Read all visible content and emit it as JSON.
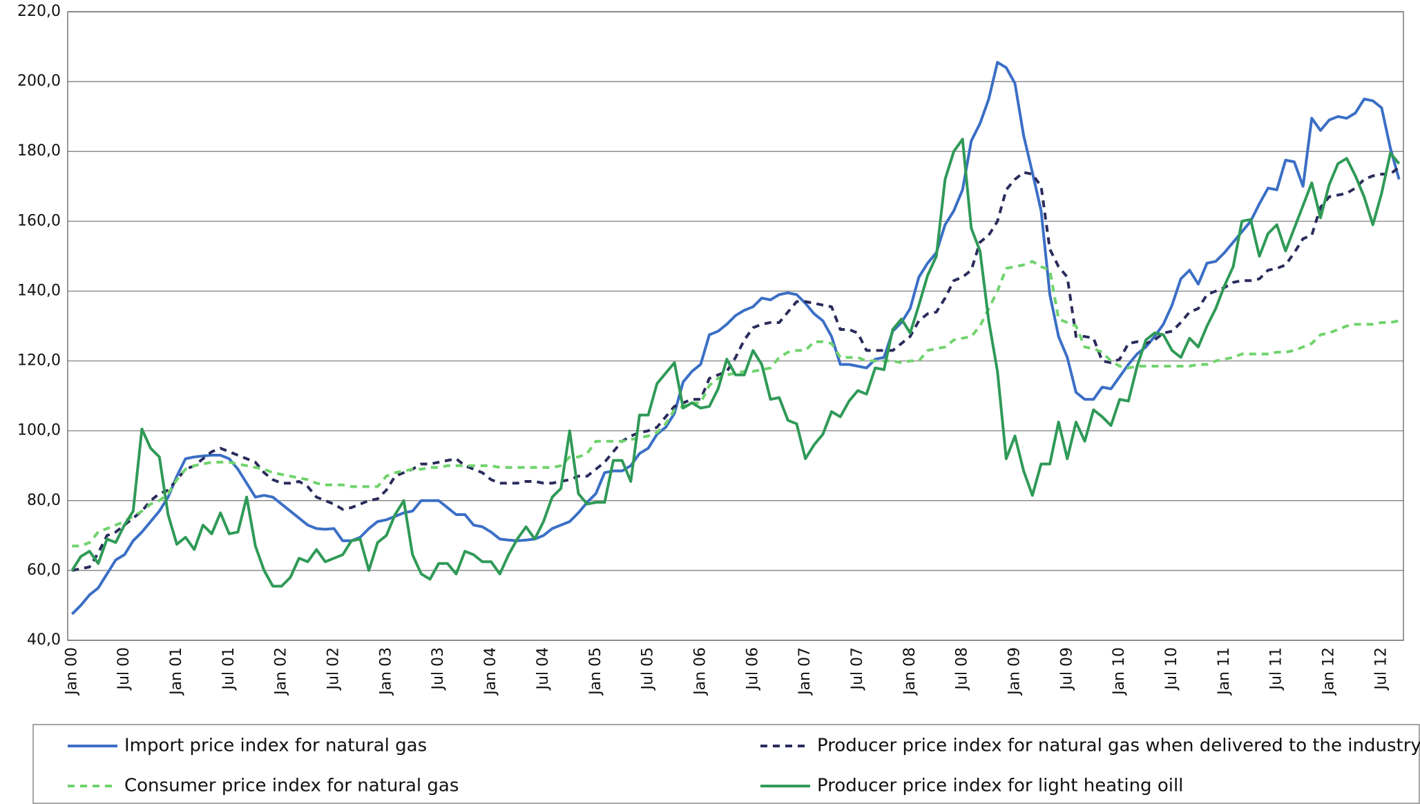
{
  "chart_data": {
    "type": "line",
    "categories": [
      "Jan 00",
      null,
      null,
      null,
      null,
      null,
      "Jul 00",
      null,
      null,
      null,
      null,
      null,
      "Jan 01",
      null,
      null,
      null,
      null,
      null,
      "Jul 01",
      null,
      null,
      null,
      null,
      null,
      "Jan 02",
      null,
      null,
      null,
      null,
      null,
      "Jul 02",
      null,
      null,
      null,
      null,
      null,
      "Jan 03",
      null,
      null,
      null,
      null,
      null,
      "Jul 03",
      null,
      null,
      null,
      null,
      null,
      "Jan 04",
      null,
      null,
      null,
      null,
      null,
      "Jul 04",
      null,
      null,
      null,
      null,
      null,
      "Jan 05",
      null,
      null,
      null,
      null,
      null,
      "Jul 05",
      null,
      null,
      null,
      null,
      null,
      "Jan 06",
      null,
      null,
      null,
      null,
      null,
      "Jul 06",
      null,
      null,
      null,
      null,
      null,
      "Jan 07",
      null,
      null,
      null,
      null,
      null,
      "Jul 07",
      null,
      null,
      null,
      null,
      null,
      "Jan 08",
      null,
      null,
      null,
      null,
      null,
      "Jul 08",
      null,
      null,
      null,
      null,
      null,
      "Jan 09",
      null,
      null,
      null,
      null,
      null,
      "Jul 09",
      null,
      null,
      null,
      null,
      null,
      "Jan 10",
      null,
      null,
      null,
      null,
      null,
      "Jul 10",
      null,
      null,
      null,
      null,
      null,
      "Jan 11",
      null,
      null,
      null,
      null,
      null,
      "Jul 11",
      null,
      null,
      null,
      null,
      null,
      "Jan 12",
      null,
      null,
      null,
      null,
      null,
      "Jul 12",
      null,
      null
    ],
    "ylim": [
      40,
      220
    ],
    "yticks": [
      {
        "value": 40,
        "label": "40,0"
      },
      {
        "value": 60,
        "label": "60,0"
      },
      {
        "value": 80,
        "label": "80,0"
      },
      {
        "value": 100,
        "label": "100,0"
      },
      {
        "value": 120,
        "label": "120,0"
      },
      {
        "value": 140,
        "label": "140,0"
      },
      {
        "value": 160,
        "label": "160,0"
      },
      {
        "value": 180,
        "label": "180,0"
      },
      {
        "value": 200,
        "label": "200,0"
      },
      {
        "value": 220,
        "label": "220,0"
      }
    ],
    "grid": true,
    "series": [
      {
        "name": "Import price index for natural gas",
        "color": "#3b6fc6",
        "dashed": false,
        "values": [
          47.5,
          50,
          53,
          55,
          59,
          63,
          64.5,
          68.5,
          71,
          74,
          77,
          81,
          87,
          92,
          92.5,
          92.8,
          93,
          93,
          92,
          89,
          85,
          81,
          81.5,
          81,
          79,
          77,
          75,
          73,
          72,
          71.8,
          72,
          68.5,
          68.5,
          69.5,
          72,
          74,
          74.5,
          75.5,
          76.5,
          77,
          80,
          80,
          80,
          78,
          76,
          76,
          73,
          72.5,
          71,
          69,
          68.7,
          68.5,
          68.7,
          69,
          70,
          72,
          73,
          74,
          76.5,
          79.5,
          82,
          88,
          88.5,
          88.5,
          90,
          93.5,
          95,
          99,
          101,
          105,
          114,
          117,
          119,
          127.5,
          128.5,
          130.5,
          133,
          134.5,
          135.5,
          138,
          137.5,
          139,
          139.5,
          139,
          136.5,
          133.5,
          131.5,
          127,
          119,
          119,
          118.5,
          118,
          120.5,
          121,
          128.5,
          131,
          135,
          144,
          148,
          151,
          159,
          163,
          169,
          183,
          188,
          195,
          205.5,
          204,
          199.5,
          184.5,
          174,
          163,
          139,
          127,
          121,
          111,
          109,
          109,
          112.5,
          112,
          115.5,
          119,
          122,
          124,
          127,
          130.5,
          136,
          143.5,
          146,
          142,
          148,
          148.5,
          151,
          154,
          157,
          160,
          165,
          169.5,
          169,
          177.5,
          177,
          170,
          189.5,
          186,
          189,
          190,
          189.5,
          191,
          195,
          194.5,
          192.5,
          181,
          172
        ]
      },
      {
        "name": "Producer price index for natural gas when delivered to the industry",
        "color": "#2a2c5c",
        "dashed": true,
        "values": [
          60,
          60.5,
          61,
          65,
          70,
          71,
          73,
          75,
          77,
          80,
          82,
          83,
          86,
          89,
          90,
          92,
          94,
          95,
          94,
          93,
          92,
          91,
          88,
          86,
          85,
          85,
          85.5,
          84,
          81,
          80,
          79,
          77.5,
          78,
          79,
          80,
          80.5,
          83,
          87,
          88,
          89,
          90.5,
          90.5,
          91,
          91.5,
          92,
          90,
          89,
          88,
          86,
          85,
          85,
          85,
          85.5,
          85.5,
          85,
          85,
          85.5,
          86,
          87,
          87,
          89,
          91,
          94,
          97,
          98.5,
          99.5,
          100,
          101,
          104,
          107,
          108,
          109,
          109,
          115,
          116,
          117,
          121,
          126,
          129.5,
          130.5,
          131,
          131,
          134,
          137,
          137,
          136.5,
          136,
          135.5,
          129,
          129,
          128,
          123,
          123,
          123,
          123,
          125,
          127,
          131.5,
          133.5,
          134,
          138,
          143,
          144,
          146,
          154,
          156,
          160,
          169,
          172,
          174,
          173.5,
          170,
          152,
          147,
          144,
          127,
          127,
          126.5,
          120,
          119.5,
          120.5,
          125,
          125.5,
          125,
          126,
          128,
          128.5,
          131,
          134,
          135,
          139,
          140,
          141,
          142.5,
          143,
          143,
          143.5,
          146,
          146.5,
          147.5,
          151,
          155,
          156,
          164,
          167,
          167.5,
          168,
          169.5,
          172,
          173,
          173.5,
          173.5,
          175.5
        ]
      },
      {
        "name": "Consumer price index for natural gas",
        "color": "#6fd36c",
        "dashed": true,
        "values": [
          67,
          67,
          68,
          71,
          72,
          73,
          74,
          75.5,
          77,
          79,
          80,
          82,
          86,
          89,
          90,
          90.5,
          91,
          91,
          91,
          90.5,
          90,
          89.5,
          89,
          88,
          87.5,
          87,
          86.5,
          86,
          85,
          84.5,
          84.5,
          84.5,
          84,
          84,
          84,
          84,
          87,
          88,
          88.5,
          89,
          89,
          89.5,
          89.5,
          90,
          90,
          90,
          90,
          90,
          90,
          89.5,
          89.5,
          89.5,
          89.5,
          89.5,
          89.5,
          89.5,
          90,
          92.5,
          92.5,
          93.5,
          97,
          97,
          97,
          97,
          97.5,
          98,
          98.5,
          99.5,
          102,
          106,
          107,
          108,
          108,
          113,
          115,
          116,
          116.5,
          117,
          117,
          117.5,
          118,
          121,
          122.5,
          123,
          123,
          125.5,
          125.5,
          125,
          121,
          121,
          121,
          120,
          120,
          120,
          120,
          119.5,
          120,
          120,
          123,
          123.5,
          124,
          126,
          126.5,
          127,
          130,
          135,
          140,
          146.5,
          147,
          147.5,
          148.5,
          147,
          146,
          132,
          131,
          130,
          124,
          123.5,
          122.5,
          120,
          118.5,
          118,
          118.5,
          118.5,
          118.5,
          118.5,
          118.5,
          118.5,
          118.5,
          119,
          119,
          120,
          120.5,
          121,
          122,
          122,
          122,
          122,
          122.5,
          122.5,
          123,
          124,
          125,
          127.5,
          128,
          129,
          130,
          130.5,
          130.5,
          130.5,
          131,
          131,
          131.5
        ]
      },
      {
        "name": "Producer price index for light heating oill",
        "color": "#2f9a57",
        "dashed": false,
        "values": [
          60,
          64,
          65.5,
          62,
          69,
          68,
          73,
          77,
          100.5,
          95,
          92.5,
          76,
          67.5,
          69.5,
          66,
          73,
          70.5,
          76.5,
          70.5,
          71,
          81,
          67,
          60,
          55.5,
          55.5,
          58,
          63.5,
          62.5,
          66,
          62.5,
          63.5,
          64.5,
          68.5,
          69,
          60,
          68,
          70,
          76,
          80,
          64.5,
          59,
          57.5,
          62,
          62,
          59,
          65.5,
          64.5,
          62.5,
          62.5,
          59,
          64.5,
          69,
          72.5,
          69,
          74,
          81,
          83.5,
          100,
          82,
          79,
          79.5,
          79.5,
          91.5,
          91.5,
          85.5,
          104.5,
          104.5,
          113.5,
          116.5,
          119.5,
          106.5,
          108,
          106.5,
          107,
          112,
          120.5,
          116,
          116,
          123,
          119,
          109,
          109.5,
          103,
          102,
          92,
          96,
          99,
          105.5,
          104,
          108.5,
          111.5,
          110.5,
          118,
          117.5,
          129,
          132,
          128,
          136,
          144.5,
          150,
          172,
          180,
          183.5,
          158,
          151.5,
          131.5,
          117,
          92,
          98.5,
          88.5,
          81.5,
          90.5,
          90.5,
          102.5,
          92,
          102.5,
          97,
          106,
          104,
          101.5,
          109,
          108.5,
          118.5,
          126,
          128,
          127.5,
          123,
          121,
          126.5,
          124,
          130,
          135,
          141.5,
          147,
          160,
          160.5,
          150,
          156.5,
          159,
          151.5,
          158,
          164.5,
          171,
          161,
          170.5,
          176.5,
          178,
          173,
          167,
          159,
          168,
          179.5,
          176.5
        ]
      }
    ]
  }
}
